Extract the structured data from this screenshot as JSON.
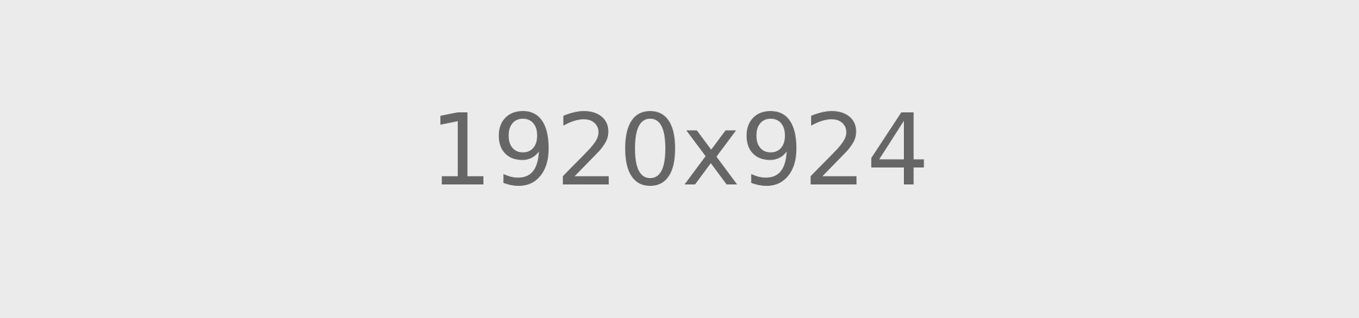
{
  "placeholder": {
    "text": "1920x924",
    "background_color": "#ebebeb",
    "text_color": "#666666"
  }
}
